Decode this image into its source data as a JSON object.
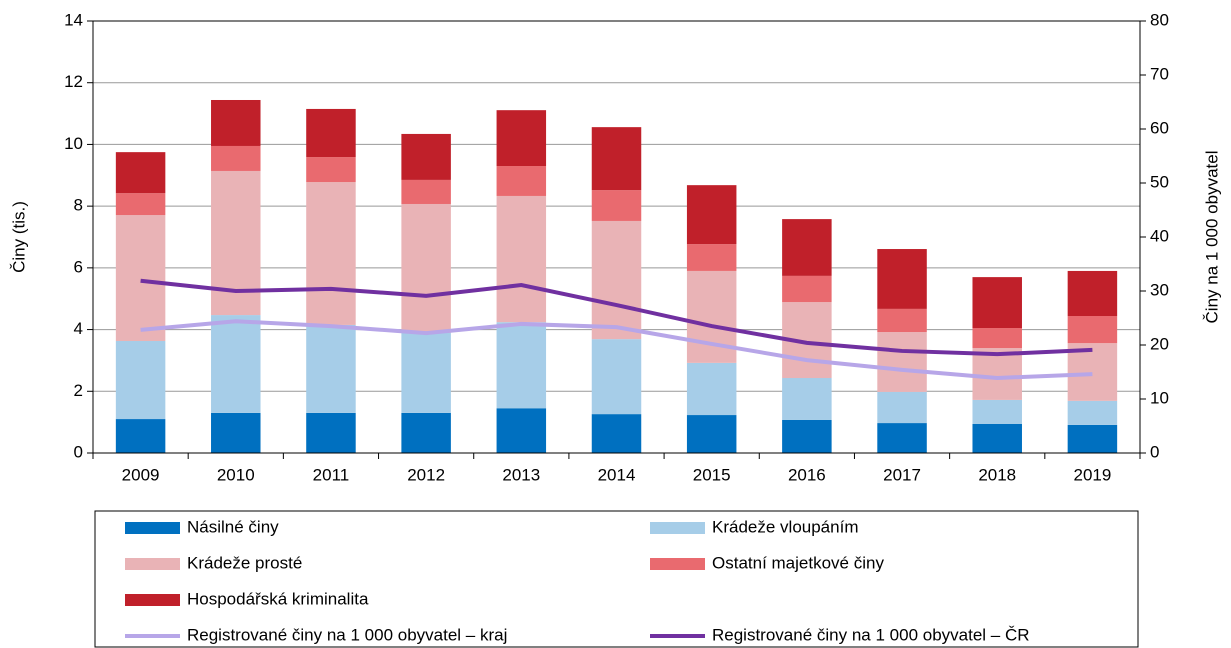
{
  "chart_data": {
    "type": "stacked-bar-line",
    "y_label": "Činy (tis.)",
    "y2_label": "Činy na 1 000 obyvatel",
    "categories": [
      "2009",
      "2010",
      "2011",
      "2012",
      "2013",
      "2014",
      "2015",
      "2016",
      "2017",
      "2018",
      "2019"
    ],
    "series": [
      {
        "name": "Násilné činy",
        "color": "#0070c0",
        "values": [
          1.1,
          1.3,
          1.3,
          1.3,
          1.45,
          1.26,
          1.23,
          1.07,
          0.97,
          0.94,
          0.91
        ]
      },
      {
        "name": "Krádeže vloupáním",
        "color": "#a6cde8",
        "values": [
          2.53,
          3.17,
          2.85,
          2.59,
          2.79,
          2.43,
          1.69,
          1.36,
          1.01,
          0.78,
          0.78
        ]
      },
      {
        "name": "Krádeže prosté",
        "color": "#e9b3b6",
        "values": [
          4.08,
          4.67,
          4.63,
          4.18,
          4.09,
          3.83,
          2.98,
          2.46,
          1.94,
          1.68,
          1.87
        ]
      },
      {
        "name": "Ostatní majetkové činy",
        "color": "#e96a6f",
        "values": [
          0.71,
          0.81,
          0.81,
          0.78,
          0.97,
          1.0,
          0.87,
          0.85,
          0.75,
          0.65,
          0.88
        ]
      },
      {
        "name": "Hospodářská kriminalita",
        "color": "#c0202a",
        "values": [
          1.33,
          1.49,
          1.56,
          1.49,
          1.81,
          2.04,
          1.91,
          1.84,
          1.94,
          1.65,
          1.46
        ]
      },
      {
        "name": "Registrované činy na 1 000 obyvatel – kraj",
        "color": "#b7a6e8",
        "axis": "y2",
        "values": [
          22.8,
          24.4,
          23.5,
          22.2,
          23.9,
          23.3,
          20.2,
          17.2,
          15.4,
          13.9,
          14.6
        ]
      },
      {
        "name": "Registrované činy na 1 000 obyvatel – ČR",
        "color": "#7030a0",
        "axis": "y2",
        "values": [
          31.9,
          30.0,
          30.4,
          29.1,
          31.1,
          27.4,
          23.5,
          20.4,
          18.9,
          18.3,
          19.1
        ]
      }
    ],
    "ylim": [
      0,
      14
    ],
    "yticks": [
      0,
      2,
      4,
      6,
      8,
      10,
      12,
      14
    ],
    "y2lim": [
      0,
      80
    ],
    "y2ticks": [
      0,
      10,
      20,
      30,
      40,
      50,
      60,
      70,
      80
    ],
    "grid": true
  }
}
